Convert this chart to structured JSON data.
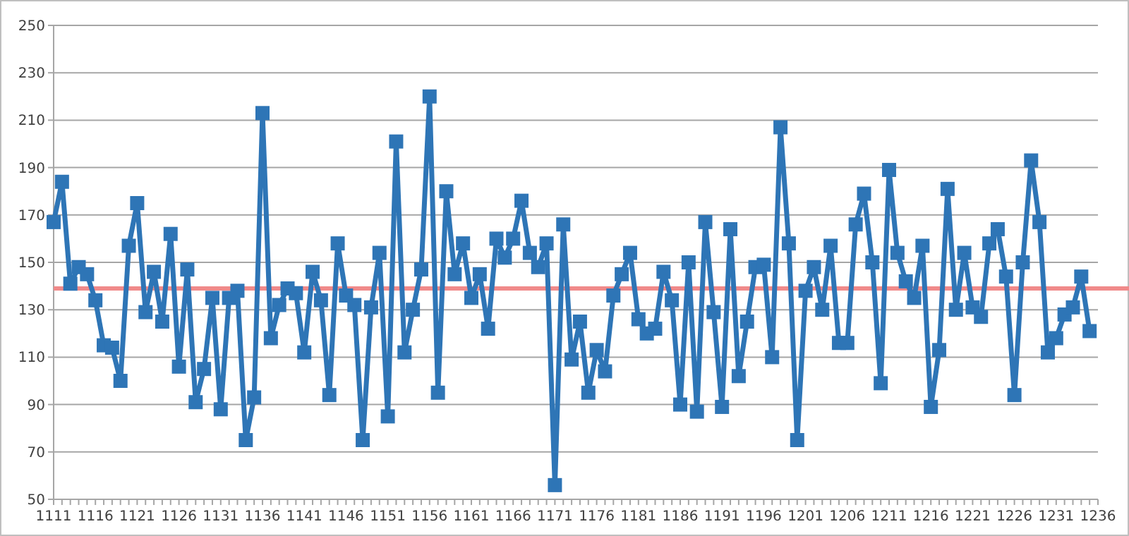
{
  "chart_data": {
    "type": "line",
    "x": [
      1111,
      1112,
      1113,
      1114,
      1115,
      1116,
      1117,
      1118,
      1119,
      1120,
      1121,
      1122,
      1123,
      1124,
      1125,
      1126,
      1127,
      1128,
      1129,
      1130,
      1131,
      1132,
      1133,
      1134,
      1135,
      1136,
      1137,
      1138,
      1139,
      1140,
      1141,
      1142,
      1143,
      1144,
      1145,
      1146,
      1147,
      1148,
      1149,
      1150,
      1151,
      1152,
      1153,
      1154,
      1155,
      1156,
      1157,
      1158,
      1159,
      1160,
      1161,
      1162,
      1163,
      1164,
      1165,
      1166,
      1167,
      1168,
      1169,
      1170,
      1171,
      1172,
      1173,
      1174,
      1175,
      1176,
      1177,
      1178,
      1179,
      1180,
      1181,
      1182,
      1183,
      1184,
      1185,
      1186,
      1187,
      1188,
      1189,
      1190,
      1191,
      1192,
      1193,
      1194,
      1195,
      1196,
      1197,
      1198,
      1199,
      1200,
      1201,
      1202,
      1203,
      1204,
      1205,
      1206,
      1207,
      1208,
      1209,
      1210,
      1211,
      1212,
      1213,
      1214,
      1215,
      1216,
      1217,
      1218,
      1219,
      1220,
      1221,
      1222,
      1223,
      1224,
      1225,
      1226,
      1227,
      1228,
      1229,
      1230,
      1231,
      1232,
      1233,
      1234,
      1235
    ],
    "series": [
      {
        "color": "#2e75b6",
        "values": [
          167,
          184,
          141,
          148,
          145,
          134,
          115,
          114,
          100,
          157,
          175,
          129,
          146,
          125,
          162,
          106,
          147,
          91,
          105,
          135,
          88,
          135,
          138,
          75,
          93,
          213,
          118,
          132,
          139,
          137,
          112,
          146,
          134,
          94,
          158,
          136,
          132,
          75,
          131,
          154,
          85,
          201,
          112,
          130,
          147,
          220,
          95,
          180,
          145,
          158,
          135,
          145,
          122,
          160,
          152,
          160,
          176,
          154,
          148,
          158,
          56,
          166,
          109,
          125,
          95,
          113,
          104,
          136,
          145,
          154,
          126,
          120,
          122,
          146,
          134,
          90,
          150,
          87,
          167,
          129,
          89,
          164,
          102,
          125,
          148,
          149,
          110,
          207,
          158,
          75,
          138,
          148,
          130,
          157,
          116,
          116,
          166,
          179,
          150,
          99,
          189,
          154,
          142,
          135,
          157,
          89,
          113,
          181,
          130,
          154,
          131,
          127,
          158,
          164,
          144,
          94,
          150,
          193,
          167,
          112,
          118,
          128,
          131,
          144,
          121
        ]
      }
    ],
    "xlim": [
      1111,
      1236
    ],
    "xticks": [
      1111,
      1116,
      1121,
      1126,
      1131,
      1136,
      1141,
      1146,
      1151,
      1156,
      1161,
      1166,
      1171,
      1176,
      1181,
      1186,
      1191,
      1196,
      1201,
      1206,
      1211,
      1216,
      1221,
      1226,
      1231,
      1236
    ],
    "ylim": [
      50,
      250
    ],
    "yticks": [
      50,
      70,
      90,
      110,
      130,
      150,
      170,
      190,
      210,
      230,
      250
    ],
    "grid": "y",
    "marker": "square",
    "line_style": "solid",
    "ref_lines": [
      {
        "axis": "y",
        "value": 139,
        "color": "#f08a8a"
      }
    ]
  }
}
